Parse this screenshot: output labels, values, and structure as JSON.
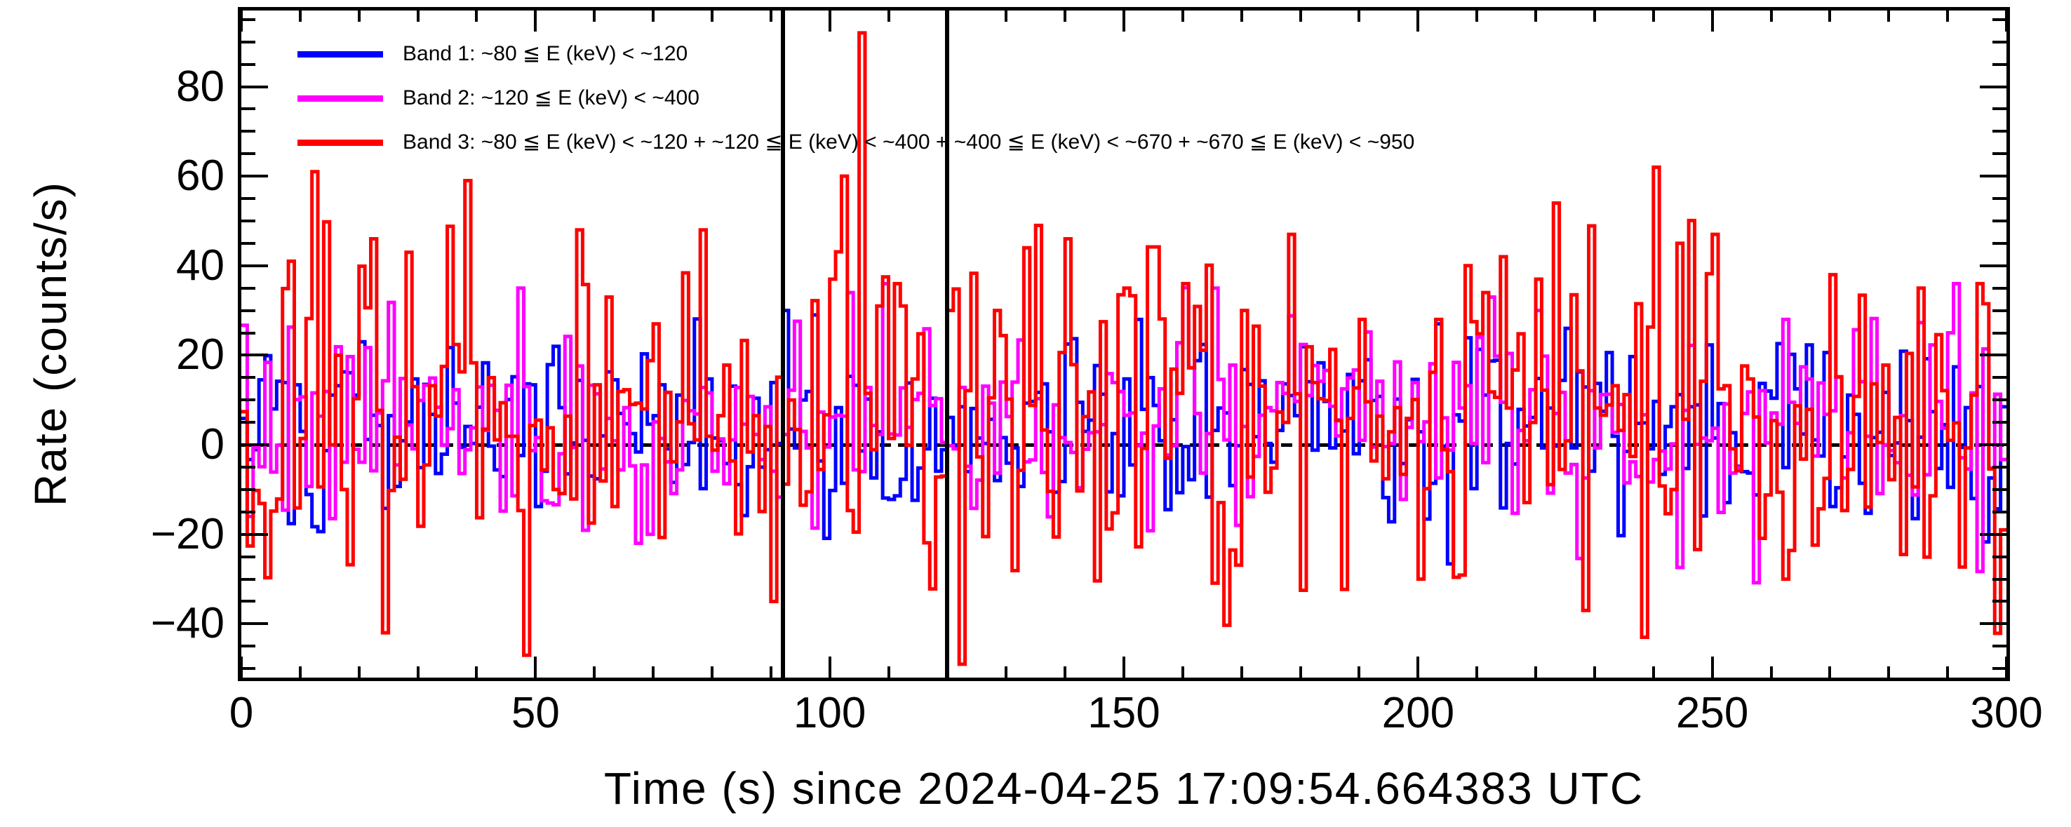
{
  "figure": {
    "background_color": "#ffffff",
    "frame_color": "#000000"
  },
  "chart_data": {
    "type": "line",
    "subtype": "step-histogram-light-curve",
    "title": "",
    "xlabel": "Time (s) since 2024-04-25 17:09:54.664383 UTC",
    "ylabel": "Rate (counts/s)",
    "xlim": [
      0,
      300
    ],
    "ylim": [
      -52,
      97
    ],
    "x_major_ticks": [
      0,
      50,
      100,
      150,
      200,
      250,
      300
    ],
    "x_minor_step": 10,
    "y_major_ticks": [
      -40,
      -20,
      0,
      20,
      40,
      60,
      80
    ],
    "y_minor_step": 5,
    "grid": false,
    "legend_position": "top-left-inside",
    "bin_width_s": 1,
    "zero_line": {
      "y": 0,
      "style": "dashed",
      "color": "#000000"
    },
    "interval_markers": [
      {
        "x": 92,
        "name": "interval-marker-start",
        "color": "#000000"
      },
      {
        "x": 120,
        "name": "interval-marker-end",
        "color": "#000000"
      }
    ],
    "peak": {
      "time_s": 105,
      "rate": 92,
      "series": "Band 3"
    },
    "legend": [
      {
        "label": "Band 1: ~80 ≦ E (keV) < ~120",
        "color": "#0000ff"
      },
      {
        "label": "Band 2: ~120 ≦ E (keV) < ~400",
        "color": "#ff00ff"
      },
      {
        "label": "Band 3: ~80 ≦ E (keV) < ~120 + ~120 ≦ E (keV) < ~400 + ~400 ≦ E (keV) < ~670 + ~670 ≦ E (keV) < ~950",
        "color": "#ff0000"
      }
    ],
    "series": [
      {
        "name": "Band 1",
        "color": "#0000ff",
        "noise": {
          "seed": 101,
          "mean": 4,
          "sigma": 10.5,
          "min": -27,
          "max": 30
        },
        "anchors": {
          "97": 29,
          "152": 28,
          "225": 26
        }
      },
      {
        "name": "Band 2",
        "color": "#ff00ff",
        "noise": {
          "seed": 202,
          "mean": 4,
          "sigma": 11.5,
          "min": -31,
          "max": 36
        },
        "anchors": {
          "47": 35,
          "103": 34,
          "165": 35,
          "212": 33,
          "220": 30,
          "262": 28,
          "290": 25
        }
      },
      {
        "name": "Band 3",
        "color": "#ff0000",
        "noise": {
          "seed": 303,
          "mean": 5,
          "sigma": 19,
          "min": -49,
          "max": 92
        },
        "anchors": {
          "8": 41,
          "12": 61,
          "22": 46,
          "24": -42,
          "28": 43,
          "38": 59,
          "48": -47,
          "57": 48,
          "62": 33,
          "70": 27,
          "78": 48,
          "90": -35,
          "100": 37,
          "102": 60,
          "105": 92,
          "108": 31,
          "112": 31,
          "120": 30,
          "128": 30,
          "133": 44,
          "135": 49,
          "140": 46,
          "150": 35,
          "160": 36,
          "170": 30,
          "178": 47,
          "190": 28,
          "200": -30,
          "208": 40,
          "214": 42,
          "220": 37,
          "223": 54,
          "228": -37,
          "238": -43,
          "240": 62,
          "244": 45,
          "250": 47,
          "262": -30,
          "270": 38,
          "285": 35,
          "295": 36
        }
      }
    ]
  }
}
